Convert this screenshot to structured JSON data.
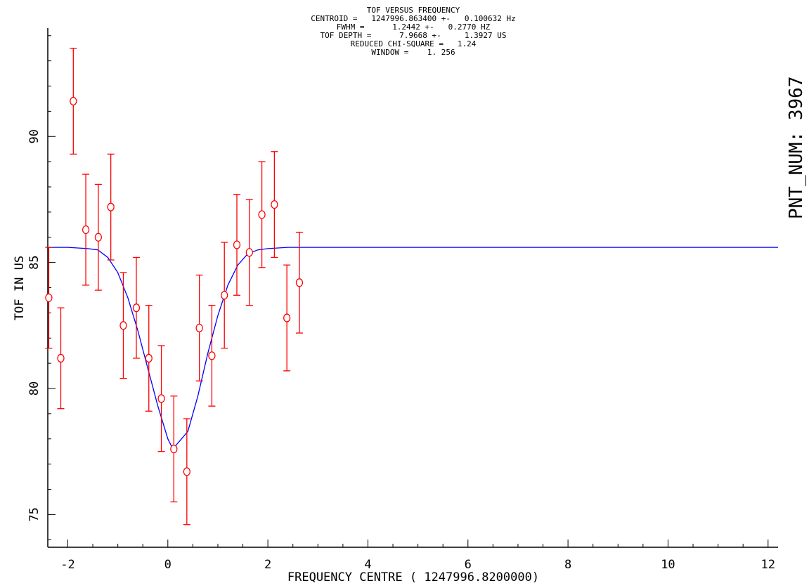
{
  "chart_data": {
    "type": "scatter",
    "header_lines": [
      "TOF VERSUS FREQUENCY",
      "CENTROID =   1247996.863400 +-   0.100632 Hz",
      "FWHM =      1.2442 +-   0.2770 HZ",
      "TOF DEPTH =      7.9668 +-     1.3927 US",
      "REDUCED CHI-SQUARE =   1.24",
      "WINDOW =    1. 256"
    ],
    "xlabel": "FREQUENCY CENTRE ( 1247996.8200000)",
    "ylabel": "TOF IN US",
    "side_label": "PNT_NUM: 3967",
    "xlim": [
      -2.4,
      12.2
    ],
    "ylim": [
      73.7,
      94.3
    ],
    "x_ticks": [
      -2,
      0,
      2,
      4,
      6,
      8,
      10,
      12
    ],
    "x_tick_labels": [
      "-2",
      "0",
      "2",
      "4",
      "6",
      "8",
      "10",
      "12"
    ],
    "y_ticks": [
      75,
      80,
      85,
      90
    ],
    "y_tick_labels": [
      "75",
      "80",
      "85",
      "90"
    ],
    "grid": false,
    "colors": {
      "points": "#ff0000",
      "fit": "#0000ff",
      "axes": "#000000"
    },
    "points": {
      "x": [
        -2.38,
        -2.14,
        -1.89,
        -1.64,
        -1.39,
        -1.14,
        -0.89,
        -0.63,
        -0.38,
        -0.13,
        0.12,
        0.38,
        0.63,
        0.88,
        1.13,
        1.38,
        1.63,
        1.88,
        2.13,
        2.38,
        2.63
      ],
      "y": [
        83.6,
        81.2,
        91.4,
        86.3,
        86.0,
        87.2,
        82.5,
        83.2,
        81.2,
        79.6,
        77.6,
        76.7,
        82.4,
        81.3,
        83.7,
        85.7,
        85.4,
        86.9,
        87.3,
        82.8,
        84.2
      ],
      "err": [
        2.0,
        2.0,
        2.1,
        2.2,
        2.1,
        2.1,
        2.1,
        2.0,
        2.1,
        2.1,
        2.1,
        2.1,
        2.1,
        2.0,
        2.1,
        2.0,
        2.1,
        2.1,
        2.1,
        2.1,
        2.0
      ]
    },
    "fit": {
      "x": [
        -2.4,
        -2.0,
        -1.6,
        -1.4,
        -1.2,
        -1.0,
        -0.8,
        -0.6,
        -0.4,
        -0.2,
        0.0,
        0.1,
        0.4,
        0.6,
        0.8,
        1.0,
        1.2,
        1.4,
        1.6,
        1.8,
        2.0,
        2.4,
        12.2
      ],
      "y": [
        85.6,
        85.6,
        85.55,
        85.5,
        85.2,
        84.6,
        83.6,
        82.3,
        80.8,
        79.3,
        78.0,
        77.6,
        78.3,
        79.7,
        81.4,
        82.9,
        84.1,
        84.9,
        85.35,
        85.5,
        85.55,
        85.6,
        85.6
      ]
    }
  }
}
